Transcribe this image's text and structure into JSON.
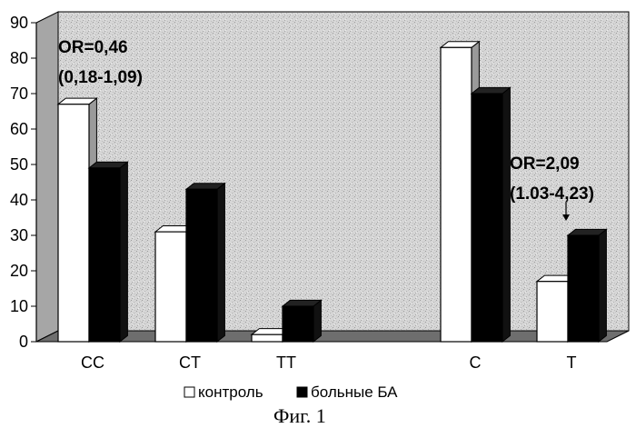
{
  "chart_data": {
    "type": "bar",
    "categories": [
      "CC",
      "CT",
      "TT",
      "C",
      "T"
    ],
    "series": [
      {
        "name": "контроль",
        "values": [
          67,
          31,
          2,
          83,
          17
        ],
        "color": "#ffffff"
      },
      {
        "name": "больные БА",
        "values": [
          49,
          43,
          10,
          70,
          30
        ],
        "color": "#000000"
      }
    ],
    "ylim": [
      0,
      90
    ],
    "yticks": [
      0,
      10,
      20,
      30,
      40,
      50,
      60,
      70,
      80,
      90
    ],
    "grid": false,
    "legend_position": "bottom",
    "style": "3d-bar",
    "annotations": [
      {
        "lines": [
          "OR=0,46",
          "(0,18-1,09)"
        ],
        "target_category": "CC"
      },
      {
        "lines": [
          "OR=2,09",
          "(1.03-4,23)"
        ],
        "target_category": "T",
        "arrow": true
      }
    ]
  },
  "caption": "Фиг. 1"
}
